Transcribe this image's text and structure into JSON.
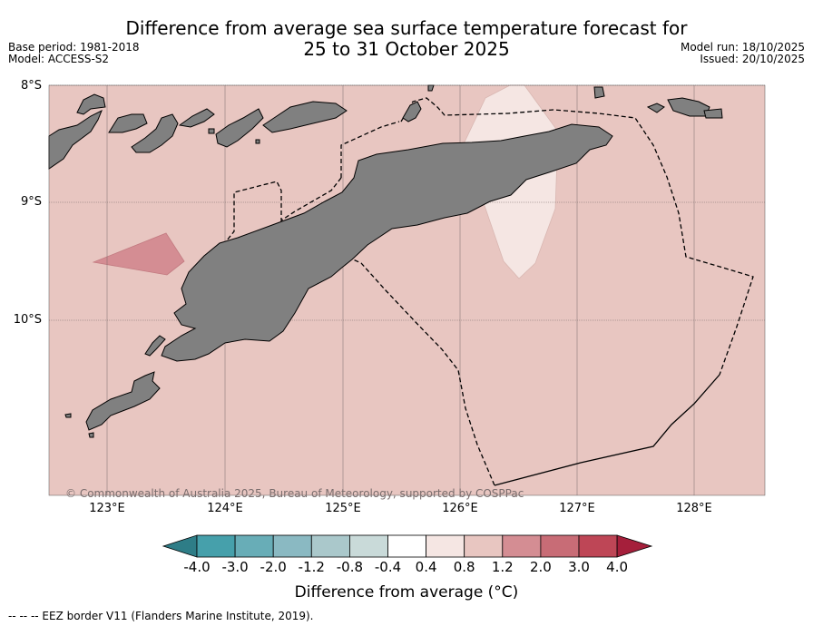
{
  "header": {
    "title_line1": "Difference from average sea surface temperature forecast for",
    "title_line2": "25 to 31 October 2025",
    "base_period": "Base period: 1981-2018",
    "model": "Model: ACCESS-S2",
    "model_run": "Model run: 18/10/2025",
    "issued": "Issued: 20/10/2025"
  },
  "map": {
    "lat_labels": [
      "8°S",
      "9°S",
      "10°S"
    ],
    "lon_labels": [
      "123°E",
      "124°E",
      "125°E",
      "126°E",
      "127°E",
      "128°E"
    ],
    "copyright": "© Commonwealth of Australia 2025, Bureau of Meteorology, supported by COSPPac",
    "colors": {
      "sea_anomaly_0_8_1_2": "#e8c6c1",
      "anomaly_0_4_0_8": "#f5e6e3",
      "anomaly_1_2_2_0": "#d48d93",
      "land": "#808080",
      "border": "#000000"
    }
  },
  "colorbar": {
    "ticks": [
      "-4.0",
      "-3.0",
      "-2.0",
      "-1.2",
      "-0.8",
      "-0.4",
      "0.4",
      "0.8",
      "1.2",
      "2.0",
      "3.0",
      "4.0"
    ],
    "colors": [
      "#2e7d87",
      "#46a0ab",
      "#68adb7",
      "#8ab9c2",
      "#aac8cb",
      "#c9dad9",
      "#ffffff",
      "#f5e6e3",
      "#e8c6c1",
      "#d48d93",
      "#c86c76",
      "#be4656",
      "#a51f3b"
    ],
    "label": "Difference from average (°C)"
  },
  "footnote": "--  --  -- EEZ border V11 (Flanders Marine Institute, 2019)."
}
